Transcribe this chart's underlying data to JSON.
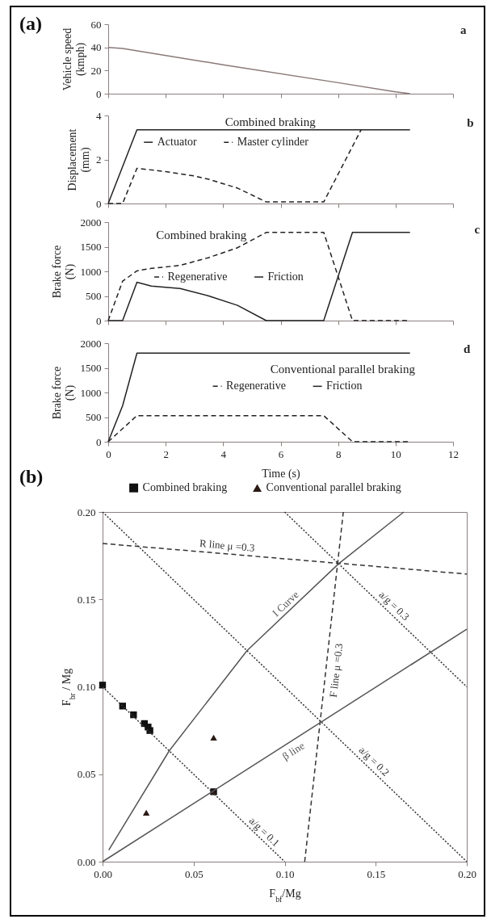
{
  "chart_data": [
    {
      "type": "line",
      "title": "(a)",
      "ylabel": "Vehicle speed\n(kmph)",
      "xlim": [
        0,
        12
      ],
      "xticks": [
        0,
        2,
        4,
        6,
        8,
        10,
        12
      ],
      "ylim": [
        0,
        60
      ],
      "yticks": [
        0,
        20,
        40,
        60
      ],
      "tick_labels": "y",
      "annotations": [
        "a"
      ],
      "series": [
        {
          "color": "#8a7878",
          "line_style": "solid",
          "x": [
            0,
            0.5,
            4,
            8,
            10,
            10.5
          ],
          "values": [
            40,
            39,
            25,
            9.5,
            1.5,
            0
          ]
        }
      ]
    },
    {
      "type": "line",
      "ylabel": "Displacement\n(mm)",
      "xlim": [
        0,
        12
      ],
      "xticks": [
        0,
        2,
        4,
        6,
        8,
        10,
        12
      ],
      "ylim": [
        0,
        4
      ],
      "yticks": [
        0,
        2,
        4
      ],
      "tick_labels": "y",
      "legend": "top left",
      "annotations": [
        "Combined braking",
        "b"
      ],
      "series": [
        {
          "name": "Actuator",
          "color": "#222222",
          "line_style": "solid",
          "x": [
            0,
            1,
            10.5
          ],
          "values": [
            0,
            3.35,
            3.35
          ]
        },
        {
          "name": "Master cylinder",
          "color": "#222222",
          "line_style": "dashed",
          "x": [
            0,
            0.5,
            1,
            2,
            2.5,
            3,
            3.5,
            4,
            4.5,
            5.5,
            7.5,
            8.8
          ],
          "values": [
            0,
            0,
            1.6,
            1.45,
            1.35,
            1.25,
            1.1,
            0.9,
            0.7,
            0.07,
            0.07,
            3.35
          ]
        }
      ]
    },
    {
      "type": "line",
      "ylabel": "Brake force\n(N)",
      "xlim": [
        0,
        12
      ],
      "xticks": [
        0,
        2,
        4,
        6,
        8,
        10,
        12
      ],
      "ylim": [
        0,
        2000
      ],
      "yticks": [
        0,
        500,
        1000,
        1500,
        2000
      ],
      "tick_labels": "y",
      "legend": "left",
      "annotations": [
        "Combined braking",
        "c"
      ],
      "series": [
        {
          "name": "Regenerative",
          "color": "#222222",
          "line_style": "dashed",
          "x": [
            0,
            0.5,
            1,
            1.5,
            2.5,
            3.5,
            4.5,
            5.5,
            7.5,
            8.5,
            10.5
          ],
          "values": [
            0,
            800,
            1010,
            1060,
            1120,
            1280,
            1480,
            1790,
            1790,
            0,
            0
          ]
        },
        {
          "name": "Friction",
          "color": "#222222",
          "line_style": "solid",
          "x": [
            0,
            0.5,
            1,
            1.5,
            2.5,
            3.5,
            4.5,
            5.5,
            7.5,
            8.5,
            10.5
          ],
          "values": [
            0,
            0,
            780,
            700,
            650,
            500,
            310,
            0,
            0,
            1790,
            1790
          ]
        }
      ]
    },
    {
      "type": "line",
      "xlabel": "Time (s)",
      "ylabel": "Brake force\n(N)",
      "xlim": [
        0,
        12
      ],
      "xticks": [
        0,
        2,
        4,
        6,
        8,
        10,
        12
      ],
      "ylim": [
        0,
        2000
      ],
      "yticks": [
        0,
        500,
        1000,
        1500,
        2000
      ],
      "legend": "right",
      "annotations": [
        "Conventional parallel braking",
        "d"
      ],
      "series": [
        {
          "name": "Regenerative",
          "color": "#222222",
          "line_style": "dashed",
          "x": [
            0,
            1,
            7.5,
            8.5,
            10.5
          ],
          "values": [
            0,
            530,
            530,
            0,
            0
          ]
        },
        {
          "name": "Friction",
          "color": "#222222",
          "line_style": "solid",
          "x": [
            0,
            0.5,
            1,
            10.5
          ],
          "values": [
            0,
            730,
            1800,
            1800
          ]
        }
      ]
    },
    {
      "type": "scatter",
      "title": "(b)",
      "xlabel": "F$_{bf}$/Mg",
      "ylabel": "F$_{br}$ / Mg",
      "xlim": [
        0,
        0.2
      ],
      "ylim": [
        0,
        0.2
      ],
      "xticks": [
        {
          "value": 0,
          "label": "0.00"
        },
        {
          "value": 0.05,
          "label": "0.05"
        },
        {
          "value": 0.1,
          "label": "0.10"
        },
        {
          "value": 0.15,
          "label": "0.15"
        },
        {
          "value": 0.2,
          "label": "0.20"
        }
      ],
      "yticks": [
        {
          "value": 0,
          "label": "0.00"
        },
        {
          "value": 0.05,
          "label": "0.05"
        },
        {
          "value": 0.1,
          "label": "0.10"
        },
        {
          "value": 0.15,
          "label": "0.15"
        },
        {
          "value": 0.2,
          "label": "0.20"
        }
      ],
      "legend": "top",
      "series": [
        {
          "name": "Combined braking",
          "color": "#111111",
          "marker": "square",
          "x": [
            0,
            0.011,
            0.017,
            0.023,
            0.025,
            0.026,
            0.061
          ],
          "values": [
            0.101,
            0.089,
            0.084,
            0.079,
            0.077,
            0.075,
            0.04
          ]
        },
        {
          "name": "Conventional parallel braking",
          "color": "#2b1a14",
          "marker": "triangle",
          "x": [
            0.061,
            0.024,
            0.061
          ],
          "values": [
            0.071,
            0.028,
            0.04
          ]
        },
        {
          "name": "a/g = 0.1",
          "type": "line",
          "color": "#333333",
          "line_style": "dotted",
          "x": [
            0,
            0.1
          ],
          "values": [
            0.1,
            0
          ]
        },
        {
          "name": "a/g = 0.2",
          "type": "line",
          "color": "#333333",
          "line_style": "dotted",
          "x": [
            0,
            0.2
          ],
          "values": [
            0.2,
            0
          ]
        },
        {
          "name": "a/g = 0.3",
          "type": "line",
          "color": "#333333",
          "line_style": "dotted",
          "x": [
            0.1,
            0.2
          ],
          "values": [
            0.2,
            0.1
          ]
        },
        {
          "name": "R line μ =0.3",
          "type": "line",
          "color": "#333333",
          "line_style": "dashed",
          "x": [
            0,
            0.2
          ],
          "values": [
            0.182,
            0.1645
          ]
        },
        {
          "name": "F line μ =0.3",
          "type": "line",
          "color": "#333333",
          "line_style": "dashed",
          "x": [
            0.111,
            0.1322
          ],
          "values": [
            0,
            0.2
          ]
        },
        {
          "name": "I Curve",
          "type": "line",
          "color": "#555555",
          "line_style": "solid",
          "x": [
            0.0034,
            0.0366,
            0.0793,
            0.1296,
            0.1654
          ],
          "values": [
            0.0066,
            0.0634,
            0.1207,
            0.1704,
            0.2
          ]
        },
        {
          "name": "β line",
          "type": "line",
          "color": "#555555",
          "line_style": "solid",
          "x": [
            0,
            0.2
          ],
          "values": [
            0,
            0.133
          ]
        }
      ]
    }
  ]
}
